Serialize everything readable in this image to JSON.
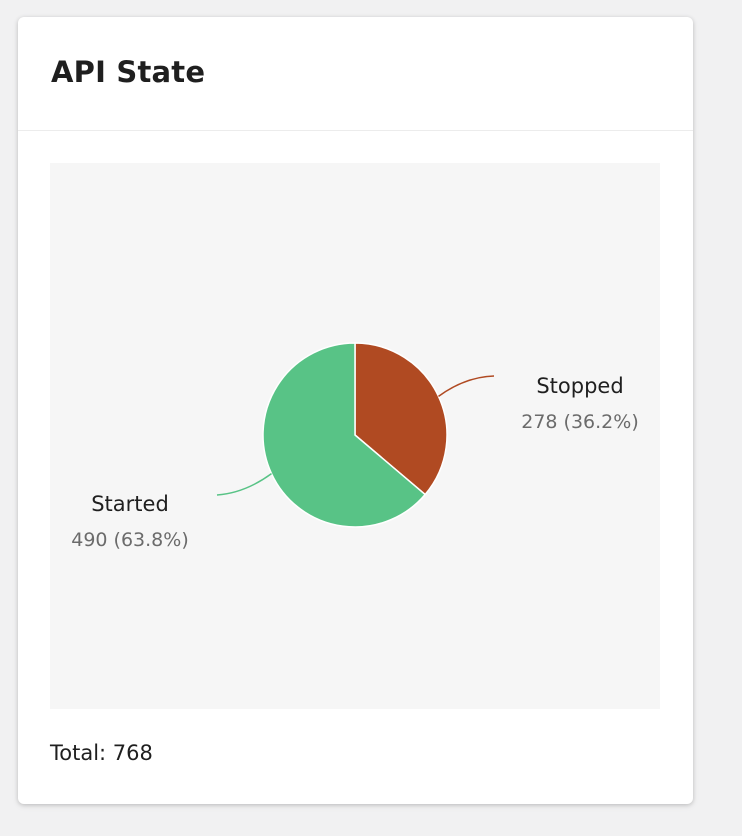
{
  "card": {
    "title": "API State",
    "total_label": "Total: 768"
  },
  "colors": {
    "started": "#58c386",
    "stopped": "#b04a22",
    "label_name": "#1f1f1f",
    "label_value": "#6b6b6b"
  },
  "chart_data": {
    "type": "pie",
    "slices": [
      {
        "name": "Stopped",
        "value": 278,
        "percent": 36.2,
        "display": "278 (36.2%)"
      },
      {
        "name": "Started",
        "value": 490,
        "percent": 63.8,
        "display": "490 (63.8%)"
      }
    ],
    "total": 768,
    "legend": "none"
  }
}
